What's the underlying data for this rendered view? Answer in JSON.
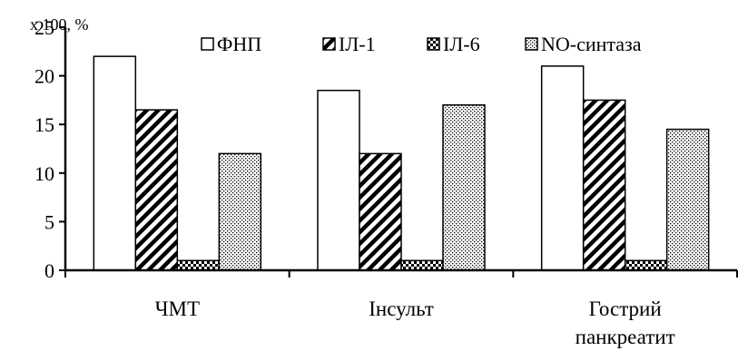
{
  "chart_data": {
    "type": "bar",
    "title": "",
    "xlabel": "",
    "ylabel": "",
    "unit_label": "x 100, %",
    "ylim": [
      0,
      25
    ],
    "yticks": [
      0,
      5,
      10,
      15,
      20,
      25
    ],
    "grid": false,
    "legend_position": "top-right",
    "categories": [
      [
        "ЧМТ"
      ],
      [
        "Інсульт"
      ],
      [
        "Гострий",
        "панкреатит"
      ]
    ],
    "series": [
      {
        "name": "ФНП",
        "values": [
          22,
          18.5,
          21
        ],
        "pattern": "white"
      },
      {
        "name": "ІЛ-1",
        "values": [
          16.5,
          12,
          17.5
        ],
        "pattern": "diagonal"
      },
      {
        "name": "ІЛ-6",
        "values": [
          1,
          1,
          1
        ],
        "pattern": "checker"
      },
      {
        "name": "NO-синтаза",
        "values": [
          12,
          17,
          14.5
        ],
        "pattern": "dots"
      }
    ]
  }
}
